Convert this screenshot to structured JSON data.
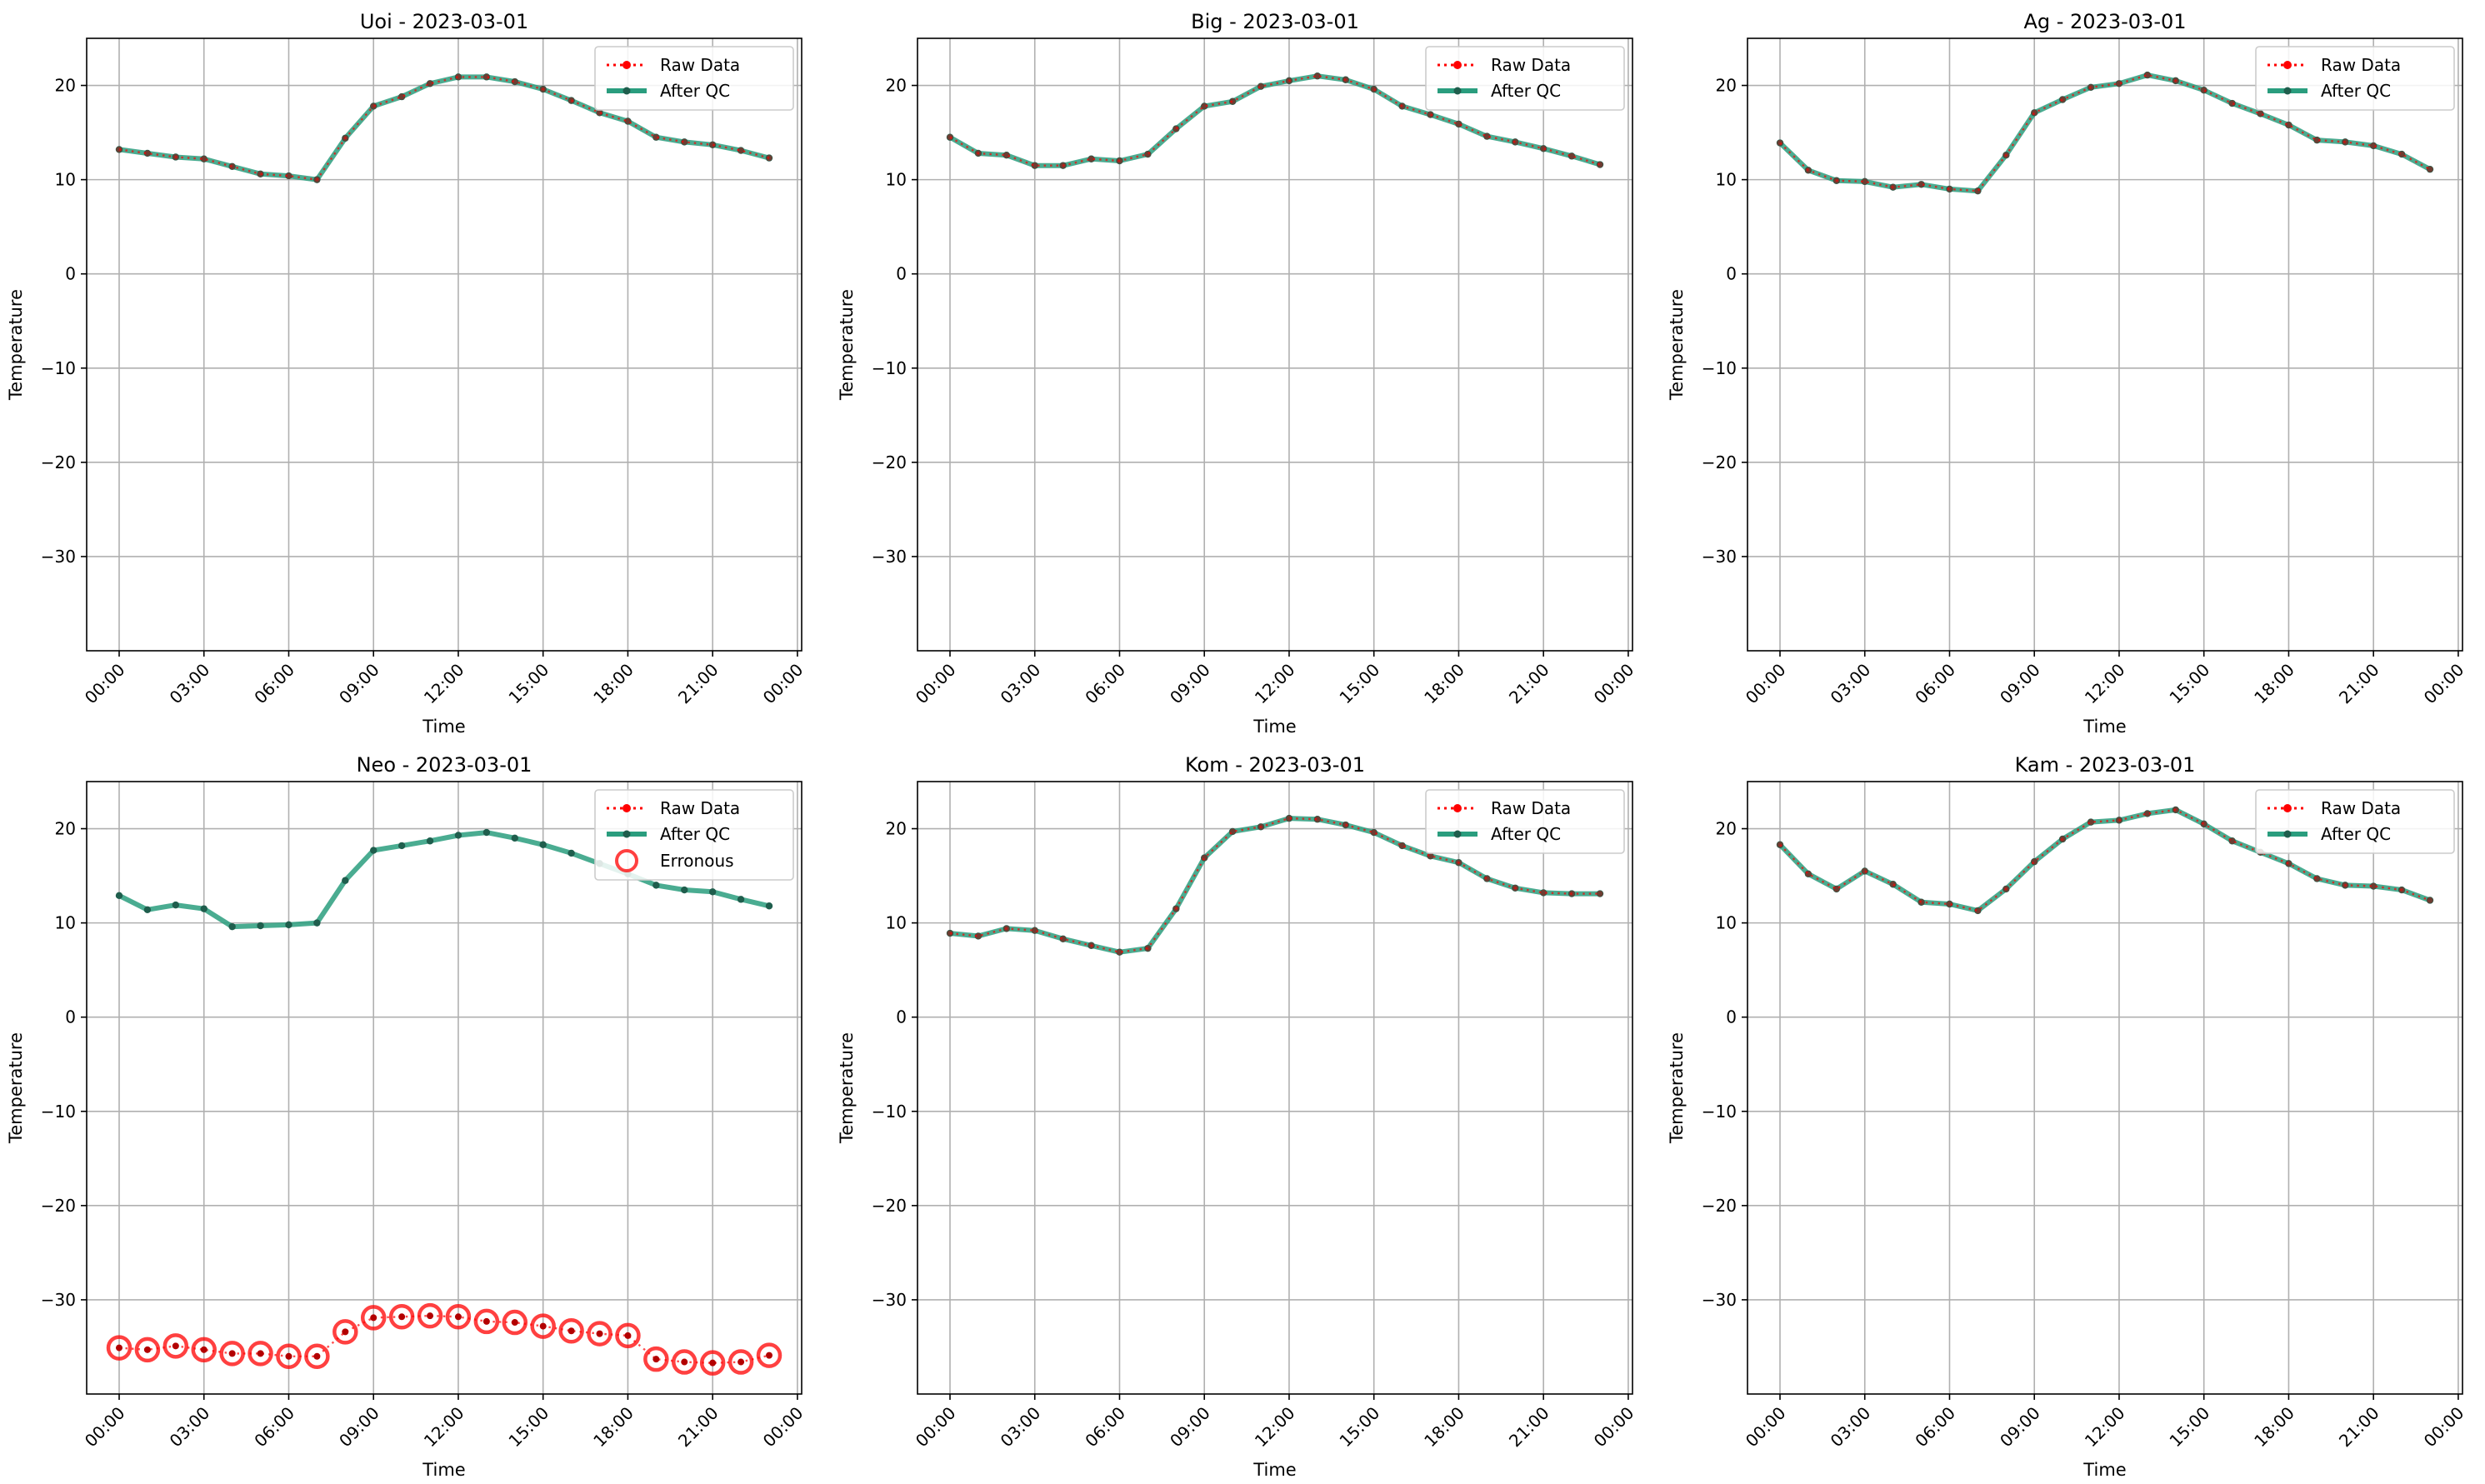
{
  "colors": {
    "raw": "#ff0000",
    "qc": "#2a9d7e",
    "qc_marker": "#1f5e4d",
    "erroneous": "#ff0000",
    "grid": "#b0b0b0",
    "axis": "#000000"
  },
  "legend": {
    "raw_label": "Raw Data",
    "qc_label": "After QC",
    "err_label": "Erronous",
    "placement": "upper right"
  },
  "chart_data": [
    {
      "type": "line",
      "title": "Uoi - 2023-03-01",
      "xlabel": "Time",
      "ylabel": "Temperature",
      "xticks": [
        "00:00",
        "03:00",
        "06:00",
        "09:00",
        "12:00",
        "15:00",
        "18:00",
        "21:00",
        "00:00"
      ],
      "xlim_hours": [
        -1.15,
        24.15
      ],
      "ylim": [
        -40,
        25
      ],
      "yticks": [
        -30,
        -20,
        -10,
        0,
        10,
        20
      ],
      "grid": true,
      "x_hours": [
        0,
        1,
        2,
        3,
        4,
        5,
        6,
        7,
        8,
        9,
        10,
        11,
        12,
        13,
        14,
        15,
        16,
        17,
        18,
        19,
        20,
        21,
        22,
        23
      ],
      "series": [
        {
          "name": "Raw Data",
          "values": [
            13.2,
            12.8,
            12.4,
            12.2,
            11.4,
            10.6,
            10.4,
            10.0,
            14.4,
            17.8,
            18.8,
            20.2,
            20.9,
            20.9,
            20.4,
            19.6,
            18.4,
            17.1,
            16.2,
            14.5,
            14.0,
            13.7,
            13.1,
            12.3
          ]
        },
        {
          "name": "After QC",
          "values": [
            13.2,
            12.8,
            12.4,
            12.2,
            11.4,
            10.6,
            10.4,
            10.0,
            14.4,
            17.8,
            18.8,
            20.2,
            20.9,
            20.9,
            20.4,
            19.6,
            18.4,
            17.1,
            16.2,
            14.5,
            14.0,
            13.7,
            13.1,
            12.3
          ]
        }
      ],
      "erroneous": []
    },
    {
      "type": "line",
      "title": "Big - 2023-03-01",
      "xlabel": "Time",
      "ylabel": "Temperature",
      "xticks": [
        "00:00",
        "03:00",
        "06:00",
        "09:00",
        "12:00",
        "15:00",
        "18:00",
        "21:00",
        "00:00"
      ],
      "xlim_hours": [
        -1.15,
        24.15
      ],
      "ylim": [
        -40,
        25
      ],
      "yticks": [
        -30,
        -20,
        -10,
        0,
        10,
        20
      ],
      "grid": true,
      "x_hours": [
        0,
        1,
        2,
        3,
        4,
        5,
        6,
        7,
        8,
        9,
        10,
        11,
        12,
        13,
        14,
        15,
        16,
        17,
        18,
        19,
        20,
        21,
        22,
        23
      ],
      "series": [
        {
          "name": "Raw Data",
          "values": [
            14.5,
            12.8,
            12.6,
            11.5,
            11.5,
            12.2,
            12.0,
            12.7,
            15.4,
            17.8,
            18.3,
            19.9,
            20.5,
            21.0,
            20.6,
            19.6,
            17.8,
            16.9,
            15.9,
            14.6,
            14.0,
            13.3,
            12.5,
            11.6
          ]
        },
        {
          "name": "After QC",
          "values": [
            14.5,
            12.8,
            12.6,
            11.5,
            11.5,
            12.2,
            12.0,
            12.7,
            15.4,
            17.8,
            18.3,
            19.9,
            20.5,
            21.0,
            20.6,
            19.6,
            17.8,
            16.9,
            15.9,
            14.6,
            14.0,
            13.3,
            12.5,
            11.6
          ]
        }
      ],
      "erroneous": []
    },
    {
      "type": "line",
      "title": "Ag - 2023-03-01",
      "xlabel": "Time",
      "ylabel": "Temperature",
      "xticks": [
        "00:00",
        "03:00",
        "06:00",
        "09:00",
        "12:00",
        "15:00",
        "18:00",
        "21:00",
        "00:00"
      ],
      "xlim_hours": [
        -1.15,
        24.15
      ],
      "ylim": [
        -40,
        25
      ],
      "yticks": [
        -30,
        -20,
        -10,
        0,
        10,
        20
      ],
      "grid": true,
      "x_hours": [
        0,
        1,
        2,
        3,
        4,
        5,
        6,
        7,
        8,
        9,
        10,
        11,
        12,
        13,
        14,
        15,
        16,
        17,
        18,
        19,
        20,
        21,
        22,
        23
      ],
      "series": [
        {
          "name": "Raw Data",
          "values": [
            13.9,
            11.0,
            9.9,
            9.8,
            9.2,
            9.5,
            9.0,
            8.8,
            12.6,
            17.1,
            18.5,
            19.8,
            20.2,
            21.1,
            20.5,
            19.5,
            18.1,
            17.0,
            15.8,
            14.2,
            14.0,
            13.6,
            12.7,
            11.1
          ]
        },
        {
          "name": "After QC",
          "values": [
            13.9,
            11.0,
            9.9,
            9.8,
            9.2,
            9.5,
            9.0,
            8.8,
            12.6,
            17.1,
            18.5,
            19.8,
            20.2,
            21.1,
            20.5,
            19.5,
            18.1,
            17.0,
            15.8,
            14.2,
            14.0,
            13.6,
            12.7,
            11.1
          ]
        }
      ],
      "erroneous": []
    },
    {
      "type": "line",
      "title": "Neo - 2023-03-01",
      "xlabel": "Time",
      "ylabel": "Temperature",
      "xticks": [
        "00:00",
        "03:00",
        "06:00",
        "09:00",
        "12:00",
        "15:00",
        "18:00",
        "21:00",
        "00:00"
      ],
      "xlim_hours": [
        -1.15,
        24.15
      ],
      "ylim": [
        -40,
        25
      ],
      "yticks": [
        -30,
        -20,
        -10,
        0,
        10,
        20
      ],
      "grid": true,
      "x_hours": [
        0,
        1,
        2,
        3,
        4,
        5,
        6,
        7,
        8,
        9,
        10,
        11,
        12,
        13,
        14,
        15,
        16,
        17,
        18,
        19,
        20,
        21,
        22,
        23
      ],
      "series": [
        {
          "name": "Raw Data",
          "values": [
            -35.1,
            -35.3,
            -34.9,
            -35.3,
            -35.7,
            -35.7,
            -36.0,
            -36.0,
            -33.4,
            -31.9,
            -31.8,
            -31.7,
            -31.8,
            -32.3,
            -32.4,
            -32.8,
            -33.3,
            -33.6,
            -33.8,
            -36.3,
            -36.6,
            -36.7,
            -36.6,
            -35.9
          ]
        },
        {
          "name": "After QC",
          "values": [
            12.9,
            11.4,
            11.9,
            11.5,
            9.6,
            9.7,
            9.8,
            10.0,
            14.5,
            17.7,
            18.2,
            18.7,
            19.3,
            19.6,
            19.0,
            18.3,
            17.4,
            16.3,
            15.2,
            14.0,
            13.5,
            13.3,
            12.5,
            11.8
          ]
        }
      ],
      "erroneous": [
        -35.1,
        -35.3,
        -34.9,
        -35.3,
        -35.7,
        -35.7,
        -36.0,
        -36.0,
        -33.4,
        -31.9,
        -31.8,
        -31.7,
        -31.8,
        -32.3,
        -32.4,
        -32.8,
        -33.3,
        -33.6,
        -33.8,
        -36.3,
        -36.6,
        -36.7,
        -36.6,
        -35.9
      ]
    },
    {
      "type": "line",
      "title": "Kom - 2023-03-01",
      "xlabel": "Time",
      "ylabel": "Temperature",
      "xticks": [
        "00:00",
        "03:00",
        "06:00",
        "09:00",
        "12:00",
        "15:00",
        "18:00",
        "21:00",
        "00:00"
      ],
      "xlim_hours": [
        -1.15,
        24.15
      ],
      "ylim": [
        -40,
        25
      ],
      "yticks": [
        -30,
        -20,
        -10,
        0,
        10,
        20
      ],
      "grid": true,
      "x_hours": [
        0,
        1,
        2,
        3,
        4,
        5,
        6,
        7,
        8,
        9,
        10,
        11,
        12,
        13,
        14,
        15,
        16,
        17,
        18,
        19,
        20,
        21,
        22,
        23
      ],
      "series": [
        {
          "name": "Raw Data",
          "values": [
            8.9,
            8.6,
            9.4,
            9.2,
            8.3,
            7.6,
            6.9,
            7.3,
            11.5,
            16.9,
            19.7,
            20.2,
            21.1,
            21.0,
            20.4,
            19.6,
            18.2,
            17.1,
            16.4,
            14.7,
            13.7,
            13.2,
            13.1,
            13.1
          ]
        },
        {
          "name": "After QC",
          "values": [
            8.9,
            8.6,
            9.4,
            9.2,
            8.3,
            7.6,
            6.9,
            7.3,
            11.5,
            16.9,
            19.7,
            20.2,
            21.1,
            21.0,
            20.4,
            19.6,
            18.2,
            17.1,
            16.4,
            14.7,
            13.7,
            13.2,
            13.1,
            13.1
          ]
        }
      ],
      "erroneous": []
    },
    {
      "type": "line",
      "title": "Kam - 2023-03-01",
      "xlabel": "Time",
      "ylabel": "Temperature",
      "xticks": [
        "00:00",
        "03:00",
        "06:00",
        "09:00",
        "12:00",
        "15:00",
        "18:00",
        "21:00",
        "00:00"
      ],
      "xlim_hours": [
        -1.15,
        24.15
      ],
      "ylim": [
        -40,
        25
      ],
      "yticks": [
        -30,
        -20,
        -10,
        0,
        10,
        20
      ],
      "grid": true,
      "x_hours": [
        0,
        1,
        2,
        3,
        4,
        5,
        6,
        7,
        8,
        9,
        10,
        11,
        12,
        13,
        14,
        15,
        16,
        17,
        18,
        19,
        20,
        21,
        22,
        23
      ],
      "series": [
        {
          "name": "Raw Data",
          "values": [
            18.3,
            15.2,
            13.6,
            15.5,
            14.1,
            12.2,
            12.0,
            11.3,
            13.6,
            16.5,
            18.9,
            20.7,
            20.9,
            21.6,
            22.0,
            20.5,
            18.7,
            17.5,
            16.3,
            14.7,
            14.0,
            13.9,
            13.5,
            12.4
          ]
        },
        {
          "name": "After QC",
          "values": [
            18.3,
            15.2,
            13.6,
            15.5,
            14.1,
            12.2,
            12.0,
            11.3,
            13.6,
            16.5,
            18.9,
            20.7,
            20.9,
            21.6,
            22.0,
            20.5,
            18.7,
            17.5,
            16.3,
            14.7,
            14.0,
            13.9,
            13.5,
            12.4
          ]
        }
      ],
      "erroneous": []
    }
  ]
}
